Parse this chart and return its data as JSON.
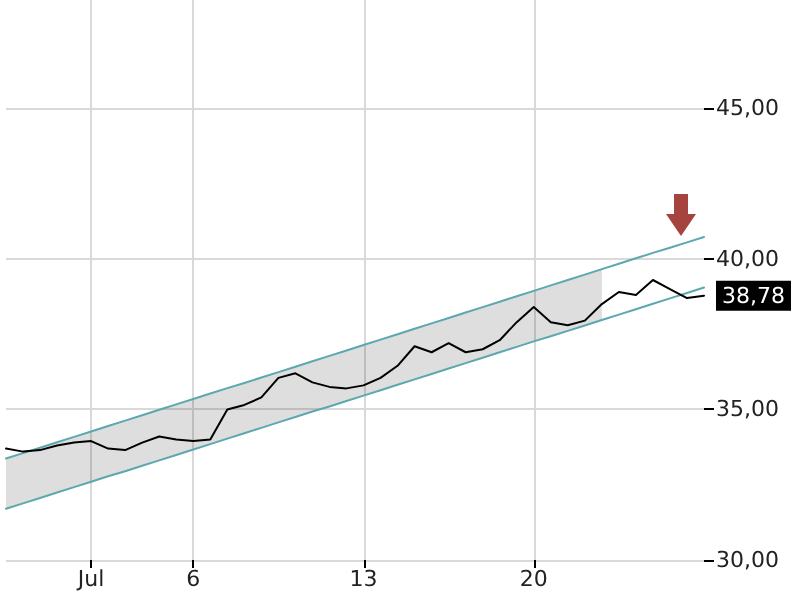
{
  "chart_data": {
    "type": "line",
    "categories": [
      null,
      null,
      null,
      null,
      null,
      "Jul",
      null,
      null,
      null,
      null,
      null,
      "6",
      null,
      null,
      null,
      null,
      null,
      null,
      null,
      null,
      null,
      "13",
      null,
      null,
      null,
      null,
      null,
      null,
      null,
      null,
      null,
      "20",
      null,
      null,
      null,
      null,
      null,
      null,
      null,
      null,
      null,
      null
    ],
    "ylim": [
      30,
      48.6
    ],
    "yticks": [
      {
        "value": 30,
        "label": "30,00"
      },
      {
        "value": 35,
        "label": "35,00"
      },
      {
        "value": 40,
        "label": "40,00"
      },
      {
        "value": 45,
        "label": "45,00"
      }
    ],
    "grid": true,
    "marker": "none",
    "line_style": "solid",
    "series": [
      {
        "type": "line",
        "color": "#5ba8ae",
        "values": [
          33.37,
          33.55,
          33.73,
          33.91,
          34.09,
          34.27,
          34.45,
          34.63,
          34.81,
          34.99,
          35.17,
          35.35,
          35.53,
          35.71,
          35.88,
          36.06,
          36.24,
          36.42,
          36.6,
          36.78,
          36.96,
          37.14,
          37.32,
          37.5,
          37.68,
          37.86,
          38.04,
          38.22,
          38.4,
          38.58,
          38.76,
          38.94,
          39.12,
          39.3,
          39.48,
          39.66,
          39.84,
          40.02,
          40.2,
          40.37,
          40.55,
          40.73
        ]
      },
      {
        "type": "line",
        "color": "#5ba8ae",
        "values": [
          31.7,
          31.88,
          32.06,
          32.24,
          32.42,
          32.6,
          32.78,
          32.95,
          33.13,
          33.31,
          33.49,
          33.67,
          33.85,
          34.03,
          34.21,
          34.39,
          34.57,
          34.75,
          34.93,
          35.1,
          35.28,
          35.46,
          35.64,
          35.82,
          36.0,
          36.18,
          36.36,
          36.54,
          36.72,
          36.9,
          37.08,
          37.26,
          37.43,
          37.61,
          37.79,
          37.97,
          38.15,
          38.33,
          38.51,
          38.69,
          38.87,
          39.05
        ]
      },
      {
        "color": "#000000",
        "values": [
          33.7,
          33.6,
          33.65,
          33.8,
          33.9,
          33.95,
          33.7,
          33.65,
          33.9,
          34.1,
          34.0,
          33.95,
          34.0,
          35.0,
          35.15,
          35.4,
          36.05,
          36.2,
          35.9,
          35.75,
          35.7,
          35.8,
          36.05,
          36.45,
          37.1,
          36.9,
          37.2,
          36.9,
          37.0,
          37.3,
          37.9,
          38.4,
          37.9,
          37.8,
          37.95,
          38.5,
          38.9,
          38.8,
          39.3,
          39.0,
          38.7,
          38.78
        ],
        "upper": [
          33.37,
          33.55,
          33.73,
          33.91,
          34.09,
          34.27,
          34.45,
          34.63,
          34.81,
          34.99,
          35.17,
          35.35,
          35.53,
          35.71,
          35.88,
          36.06,
          36.24,
          36.42,
          36.6,
          36.78,
          36.96,
          37.14,
          37.32,
          37.5,
          37.68,
          37.86,
          38.04,
          38.22,
          38.4,
          38.58,
          38.76,
          38.94,
          39.12,
          39.3,
          39.48,
          39.66,
          null,
          null,
          null,
          null,
          null,
          null
        ],
        "lower": [
          31.7,
          31.88,
          32.06,
          32.24,
          32.42,
          32.6,
          32.78,
          32.95,
          33.13,
          33.31,
          33.49,
          33.67,
          33.85,
          34.03,
          34.21,
          34.39,
          34.57,
          34.75,
          34.93,
          35.1,
          35.28,
          35.46,
          35.64,
          35.82,
          36.0,
          36.18,
          36.36,
          36.54,
          36.72,
          36.9,
          37.08,
          37.26,
          37.43,
          37.61,
          37.79,
          37.97,
          null,
          null,
          null,
          null,
          null,
          null
        ],
        "value_labels": [
          null,
          null,
          null,
          null,
          null,
          null,
          null,
          null,
          null,
          null,
          null,
          null,
          null,
          null,
          null,
          null,
          null,
          null,
          null,
          null,
          null,
          null,
          null,
          null,
          null,
          null,
          null,
          null,
          null,
          null,
          null,
          null,
          null,
          null,
          null,
          null,
          null,
          null,
          null,
          null,
          null,
          "38,78"
        ]
      }
    ]
  }
}
